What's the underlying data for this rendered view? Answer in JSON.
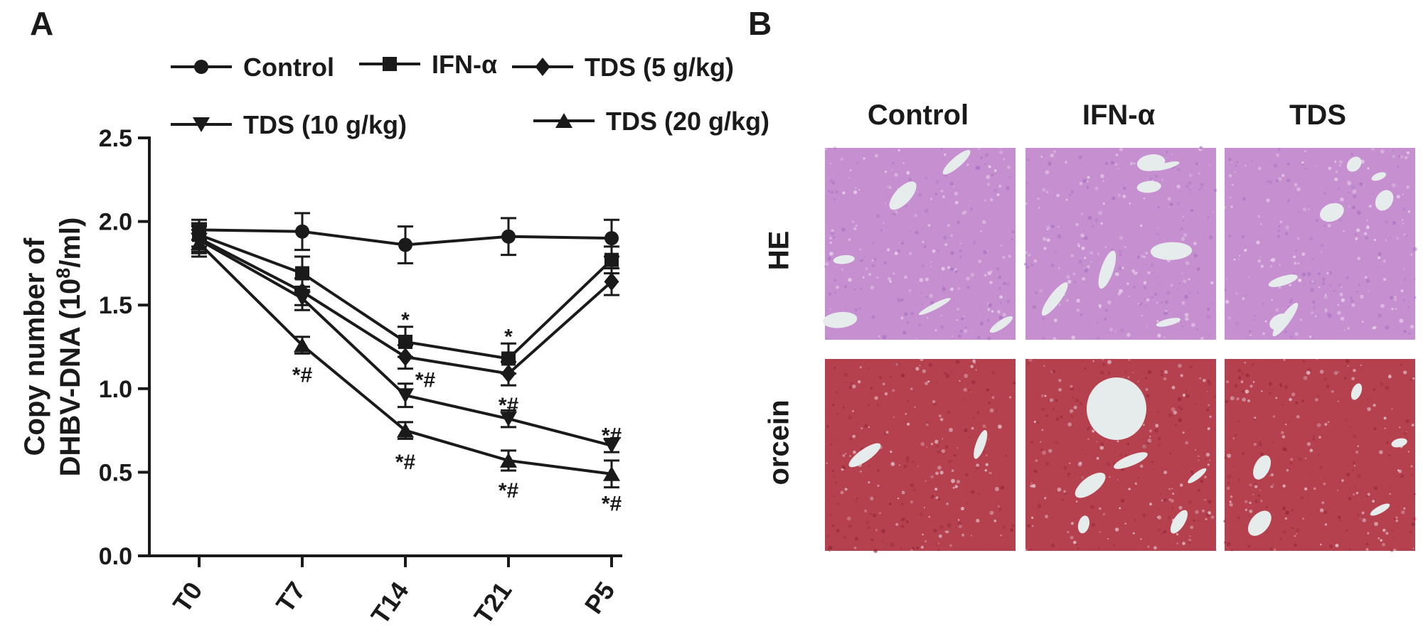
{
  "panels": {
    "a": "A",
    "b": "B"
  },
  "chart_data": {
    "type": "line",
    "categories": [
      "T0",
      "T7",
      "T14",
      "T21",
      "P5"
    ],
    "ylabel_line1": "Copy number of",
    "ylabel_line2_prefix": "DHBV-DNA (10",
    "ylabel_sup": "8",
    "ylabel_line2_suffix": "/ml)",
    "ylim": [
      0,
      2.5
    ],
    "yticks": [
      "0.0",
      "0.5",
      "1.0",
      "1.5",
      "2.0",
      "2.5"
    ],
    "legend_placement": "top",
    "series": [
      {
        "name": "Control",
        "marker": "circle",
        "values": [
          1.95,
          1.94,
          1.86,
          1.91,
          1.9
        ],
        "err": [
          0.06,
          0.11,
          0.11,
          0.11,
          0.11
        ]
      },
      {
        "name": "IFN-α",
        "marker": "square",
        "values": [
          1.92,
          1.69,
          1.28,
          1.18,
          1.77
        ],
        "err": [
          0.07,
          0.1,
          0.09,
          0.09,
          0.08
        ]
      },
      {
        "name": "TDS (5 g/kg)",
        "marker": "diamond",
        "values": [
          1.9,
          1.58,
          1.19,
          1.09,
          1.64
        ],
        "err": [
          0.08,
          0.08,
          0.07,
          0.07,
          0.08
        ]
      },
      {
        "name": "TDS (10 g/kg)",
        "marker": "triangle-down",
        "values": [
          1.89,
          1.54,
          0.96,
          0.82,
          0.66
        ],
        "err": [
          0.08,
          0.07,
          0.07,
          0.05,
          0.04
        ]
      },
      {
        "name": "TDS (20 g/kg)",
        "marker": "triangle-up",
        "values": [
          1.87,
          1.26,
          0.75,
          0.57,
          0.49
        ],
        "err": [
          0.08,
          0.05,
          0.05,
          0.06,
          0.08
        ]
      }
    ],
    "annotations": [
      {
        "text": "*",
        "x": "T14",
        "y": 1.42
      },
      {
        "text": "*",
        "x": "T21",
        "y": 1.32
      },
      {
        "text": "*#",
        "x": "T7",
        "y": 1.09,
        "dx": 0
      },
      {
        "text": "*#",
        "x": "T14",
        "y": 1.06,
        "dx": 28
      },
      {
        "text": "*#",
        "x": "T21",
        "y": 0.91
      },
      {
        "text": "*#",
        "x": "P5",
        "y": 0.73
      },
      {
        "text": "*#",
        "x": "T14",
        "y": 0.57
      },
      {
        "text": "*#",
        "x": "T21",
        "y": 0.4
      },
      {
        "text": "*#",
        "x": "P5",
        "y": 0.32
      }
    ]
  },
  "histology": {
    "columns": [
      "Control",
      "IFN-α",
      "TDS"
    ],
    "rows": [
      "HE",
      "orcein"
    ],
    "colors": {
      "he_base": "#c58fd0",
      "he_dark": "#a56fbf",
      "orcein_base": "#b5414e",
      "orcein_dark": "#8f2536",
      "vessel": "#e6eceb"
    }
  }
}
